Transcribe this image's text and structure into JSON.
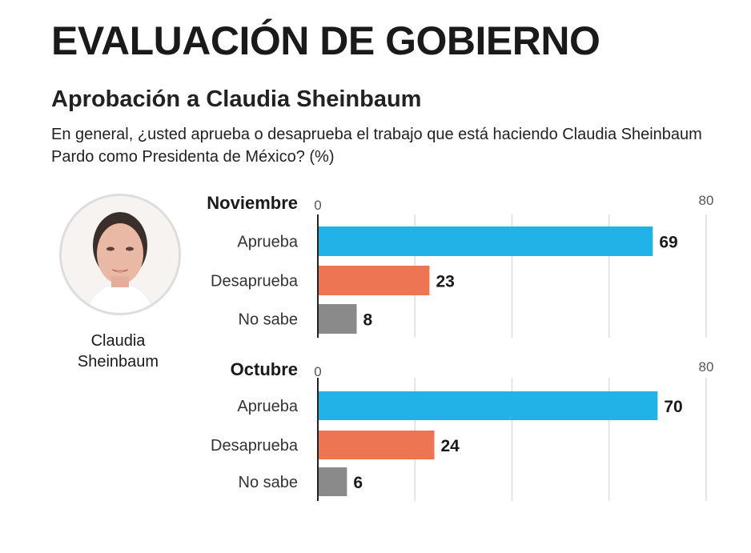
{
  "header": {
    "title": "EVALUACIÓN DE GOBIERNO",
    "subtitle": "Aprobación a Claudia Sheinbaum",
    "question": "En general, ¿usted aprueba o desaprueba el trabajo que está haciendo Claudia Sheinbaum Pardo como Presidenta de México? (%)"
  },
  "person": {
    "name_line1": "Claudia",
    "name_line2": "Sheinbaum"
  },
  "chart_data": [
    {
      "type": "bar",
      "title": "Noviembre",
      "categories": [
        "Aprueba",
        "Desaprueba",
        "No sabe"
      ],
      "values": [
        69,
        23,
        8
      ],
      "colors": [
        "#21b3e8",
        "#ed7553",
        "#8a8a8a"
      ],
      "xlim": [
        0,
        80
      ],
      "tick_labels": [
        "0",
        "80"
      ],
      "grid": true
    },
    {
      "type": "bar",
      "title": "Octubre",
      "categories": [
        "Aprueba",
        "Desaprueba",
        "No sabe"
      ],
      "values": [
        70,
        24,
        6
      ],
      "colors": [
        "#21b3e8",
        "#ed7553",
        "#8a8a8a"
      ],
      "xlim": [
        0,
        80
      ],
      "tick_labels": [
        "0",
        "80"
      ],
      "grid": true
    }
  ]
}
